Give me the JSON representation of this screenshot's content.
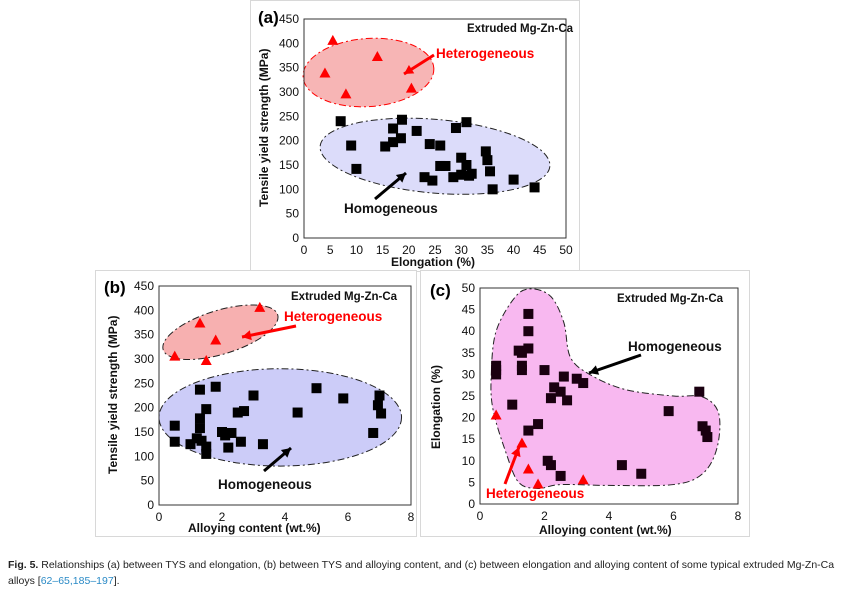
{
  "chart_data": [
    {
      "type": "scatter",
      "panel_label": "(a)",
      "annotation": "Extruded Mg-Zn-Ca",
      "xlabel": "Elongation (%)",
      "ylabel": "Tensile yield strength (MPa)",
      "xlim": [
        0,
        50
      ],
      "ylim": [
        0,
        450
      ],
      "xticks": [
        0,
        5,
        10,
        15,
        20,
        25,
        30,
        35,
        40,
        45,
        50
      ],
      "yticks": [
        0,
        50,
        100,
        150,
        200,
        250,
        300,
        350,
        400,
        450
      ],
      "grid": false,
      "series": [
        {
          "name": "Heterogeneous",
          "marker": "triangle",
          "color": "#ff0000",
          "region_color": "#f7b5b5",
          "points": [
            [
              5.5,
              405
            ],
            [
              4,
              338
            ],
            [
              8,
              295
            ],
            [
              14,
              372
            ],
            [
              20.5,
              307
            ]
          ]
        },
        {
          "name": "Homogeneous",
          "marker": "square",
          "color": "#000000",
          "region_color": "#dcdcfa",
          "points": [
            [
              7,
              240
            ],
            [
              9,
              190
            ],
            [
              10,
              142
            ],
            [
              15.5,
              188
            ],
            [
              17,
              225
            ],
            [
              17,
              197
            ],
            [
              18.5,
              205
            ],
            [
              18.7,
              243
            ],
            [
              21.5,
              220
            ],
            [
              24,
              193
            ],
            [
              26,
              190
            ],
            [
              23,
              125
            ],
            [
              24.5,
              118
            ],
            [
              26,
              148
            ],
            [
              27,
              148
            ],
            [
              28.5,
              125
            ],
            [
              29,
              226
            ],
            [
              30,
              165
            ],
            [
              30,
              130
            ],
            [
              31,
              238
            ],
            [
              31,
              150
            ],
            [
              31.5,
              128
            ],
            [
              32,
              132
            ],
            [
              34.7,
              178
            ],
            [
              35,
              160
            ],
            [
              35.5,
              137
            ],
            [
              36,
              100
            ],
            [
              40,
              120
            ],
            [
              44,
              104
            ]
          ]
        }
      ]
    },
    {
      "type": "scatter",
      "panel_label": "(b)",
      "annotation": "Extruded Mg-Zn-Ca",
      "xlabel": "Alloying content (wt.%)",
      "ylabel": "Tensile yield strength (MPa)",
      "xlim": [
        0,
        8
      ],
      "ylim": [
        0,
        450
      ],
      "xticks": [
        0,
        2,
        4,
        6,
        8
      ],
      "yticks": [
        0,
        50,
        100,
        150,
        200,
        250,
        300,
        350,
        400,
        450
      ],
      "grid": false,
      "series": [
        {
          "name": "Heterogeneous",
          "marker": "triangle",
          "color": "#ff0000",
          "region_color": "#f7b0b0",
          "points": [
            [
              0.5,
              305
            ],
            [
              1.3,
              373
            ],
            [
              1.5,
              296
            ],
            [
              1.8,
              338
            ],
            [
              3.2,
              405
            ]
          ]
        },
        {
          "name": "Homogeneous",
          "marker": "square",
          "color": "#000000",
          "region_color": "#ccccf8",
          "points": [
            [
              0.5,
              163
            ],
            [
              0.5,
              130
            ],
            [
              1.0,
              125
            ],
            [
              1.2,
              137
            ],
            [
              1.3,
              237
            ],
            [
              1.3,
              178
            ],
            [
              1.3,
              158
            ],
            [
              1.35,
              132
            ],
            [
              1.5,
              120
            ],
            [
              1.5,
              105
            ],
            [
              1.5,
              197
            ],
            [
              1.8,
              243
            ],
            [
              2.0,
              150
            ],
            [
              2.1,
              143
            ],
            [
              2.2,
              118
            ],
            [
              2.3,
              148
            ],
            [
              2.5,
              190
            ],
            [
              2.6,
              130
            ],
            [
              2.7,
              193
            ],
            [
              3.0,
              225
            ],
            [
              3.3,
              125
            ],
            [
              4.4,
              190
            ],
            [
              5.0,
              240
            ],
            [
              5.85,
              219
            ],
            [
              6.8,
              148
            ],
            [
              6.95,
              205
            ],
            [
              7.0,
              225
            ],
            [
              7.05,
              188
            ]
          ]
        }
      ]
    },
    {
      "type": "scatter",
      "panel_label": "(c)",
      "annotation": "Extruded Mg-Zn-Ca",
      "xlabel": "Alloying content (wt.%)",
      "ylabel": "Elongation (%)",
      "xlim": [
        0,
        8
      ],
      "ylim": [
        0,
        50
      ],
      "xticks": [
        0,
        2,
        4,
        6,
        8
      ],
      "yticks": [
        0,
        5,
        10,
        15,
        20,
        25,
        30,
        35,
        40,
        45,
        50
      ],
      "grid": false,
      "series": [
        {
          "name": "Heterogeneous",
          "marker": "triangle",
          "color": "#ff0000",
          "region_color": "#f8b8f0",
          "points": [
            [
              0.5,
              20.5
            ],
            [
              1.3,
              14
            ],
            [
              1.5,
              8
            ],
            [
              1.8,
              4.5
            ],
            [
              3.2,
              5.5
            ]
          ]
        },
        {
          "name": "Homogeneous",
          "marker": "square",
          "color": "#1a0010",
          "region_color": "#f8b8f0",
          "points": [
            [
              0.5,
              32
            ],
            [
              0.5,
              31
            ],
            [
              0.5,
              30
            ],
            [
              1.0,
              23
            ],
            [
              1.2,
              35.5
            ],
            [
              1.3,
              35
            ],
            [
              1.3,
              31
            ],
            [
              1.3,
              32
            ],
            [
              1.5,
              44
            ],
            [
              1.5,
              40
            ],
            [
              1.5,
              36
            ],
            [
              1.5,
              17
            ],
            [
              1.8,
              18.5
            ],
            [
              2.0,
              31
            ],
            [
              2.1,
              10
            ],
            [
              2.2,
              9
            ],
            [
              2.2,
              24.5
            ],
            [
              2.3,
              27
            ],
            [
              2.5,
              26
            ],
            [
              2.5,
              6.5
            ],
            [
              2.6,
              29.5
            ],
            [
              2.7,
              24
            ],
            [
              3.0,
              29
            ],
            [
              3.2,
              28
            ],
            [
              4.4,
              9
            ],
            [
              5.0,
              7
            ],
            [
              5.85,
              21.5
            ],
            [
              6.8,
              26
            ],
            [
              6.9,
              18
            ],
            [
              7.0,
              17
            ],
            [
              7.05,
              15.5
            ]
          ]
        }
      ]
    }
  ],
  "caption": {
    "fig_label": "Fig. 5.",
    "text": " Relationships (a) between TYS and elongation, (b) between TYS and alloying content, and (c) between elongation and alloying content of some typical extruded Mg-Zn-Ca alloys [",
    "refs": "62–65,185–197",
    "end": "]."
  }
}
